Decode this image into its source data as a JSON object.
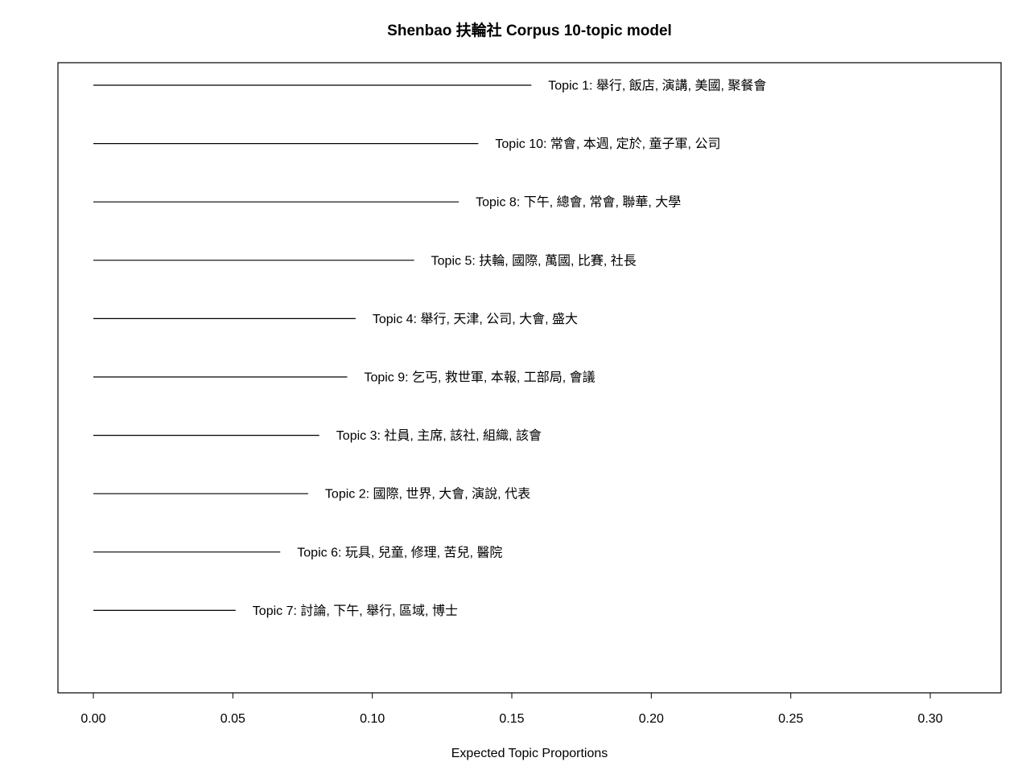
{
  "chart_data": {
    "type": "bar",
    "orientation": "horizontal",
    "title": "Shenbao 扶輪社 Corpus 10-topic model",
    "xlabel": "Expected Topic Proportions",
    "ylabel": "",
    "xlim": [
      0.0,
      0.32
    ],
    "x_ticks": [
      "0.00",
      "0.05",
      "0.10",
      "0.15",
      "0.20",
      "0.25",
      "0.30"
    ],
    "x_tick_values": [
      0.0,
      0.05,
      0.1,
      0.15,
      0.2,
      0.25,
      0.3
    ],
    "grid": false,
    "topics": [
      {
        "label": "Topic 1: 舉行, 飯店, 演講, 美國, 聚餐會",
        "value": 0.157
      },
      {
        "label": "Topic 10: 常會, 本週, 定於, 童子軍, 公司",
        "value": 0.138
      },
      {
        "label": "Topic 8: 下午, 總會, 常會, 聯華, 大學",
        "value": 0.131
      },
      {
        "label": "Topic 5: 扶輪, 國際, 萬國, 比賽, 社長",
        "value": 0.115
      },
      {
        "label": "Topic 4: 舉行, 天津, 公司, 大會, 盛大",
        "value": 0.094
      },
      {
        "label": "Topic 9: 乞丐, 救世軍, 本報, 工部局, 會議",
        "value": 0.091
      },
      {
        "label": "Topic 3: 社員, 主席, 該社, 組織, 該會",
        "value": 0.081
      },
      {
        "label": "Topic 2: 國際, 世界, 大會, 演說, 代表",
        "value": 0.077
      },
      {
        "label": "Topic 6: 玩具, 兒童, 修理, 苦兒, 醫院",
        "value": 0.067
      },
      {
        "label": "Topic 7: 討論, 下午, 舉行, 區域, 博士",
        "value": 0.051
      }
    ]
  }
}
